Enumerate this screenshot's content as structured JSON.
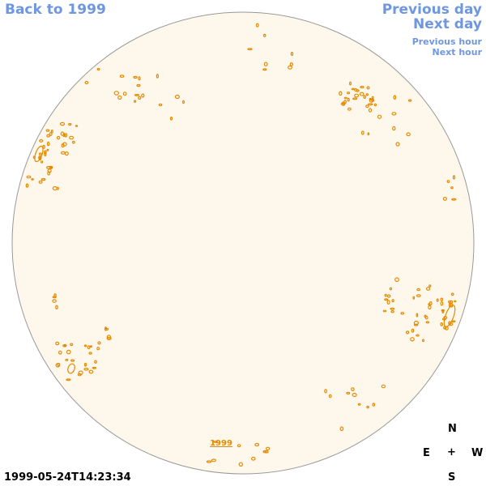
{
  "navigation": {
    "back_label": "Back to 1999",
    "previous_day_label": "Previous day",
    "next_day_label": "Next day",
    "previous_hour_label": "Previous hour",
    "next_hour_label": "Next hour"
  },
  "solar_disk": {
    "year_label": "1999",
    "disk_color": "#fdf8eb",
    "limb_color": "#999999",
    "feature_color": "#e58a00"
  },
  "timestamp": "1999-05-24T14:23:34",
  "compass": {
    "north": "N",
    "east": "E",
    "center": "+",
    "west": "W",
    "south": "S"
  }
}
